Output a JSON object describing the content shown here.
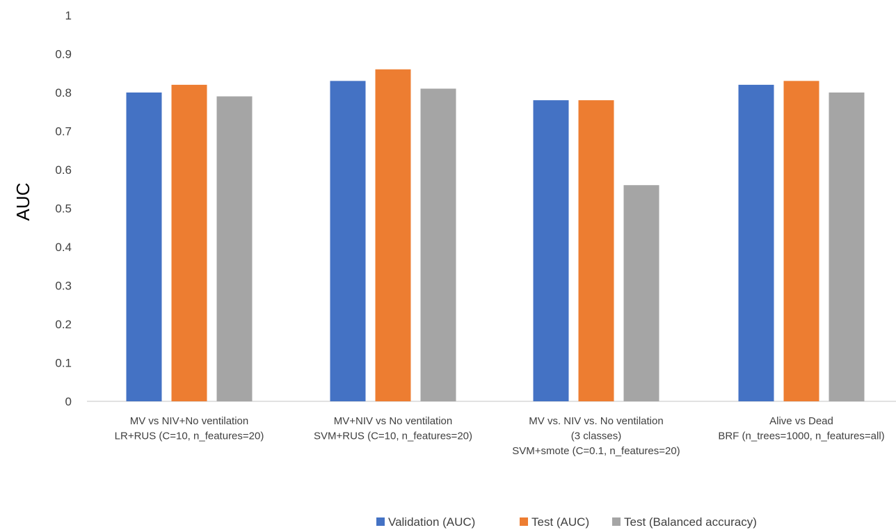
{
  "chart_data": {
    "type": "bar",
    "title": "",
    "xlabel": "",
    "ylabel": "AUC",
    "ylim": [
      0,
      1
    ],
    "yticks": [
      "0",
      "0.1",
      "0.2",
      "0.3",
      "0.4",
      "0.5",
      "0.6",
      "0.7",
      "0.8",
      "0.9",
      "1"
    ],
    "grid": false,
    "legend_position": "bottom",
    "categories": [
      [
        "MV vs NIV+No ventilation",
        "LR+RUS (C=10, n_features=20)"
      ],
      [
        "MV+NIV vs No ventilation",
        "SVM+RUS (C=10, n_features=20)"
      ],
      [
        "MV vs. NIV vs. No ventilation",
        "(3 classes)",
        "SVM+smote (C=0.1, n_features=20)"
      ],
      [
        "Alive vs Dead",
        "BRF (n_trees=1000, n_features=all)"
      ]
    ],
    "series": [
      {
        "name": "Validation (AUC)",
        "color": "#4472C4",
        "values": [
          0.8,
          0.83,
          0.78,
          0.82
        ]
      },
      {
        "name": "Test (AUC)",
        "color": "#ED7D31",
        "values": [
          0.82,
          0.86,
          0.78,
          0.83
        ]
      },
      {
        "name": "Test (Balanced accuracy)",
        "color": "#A5A5A5",
        "values": [
          0.79,
          0.81,
          0.56,
          0.8
        ]
      }
    ]
  }
}
